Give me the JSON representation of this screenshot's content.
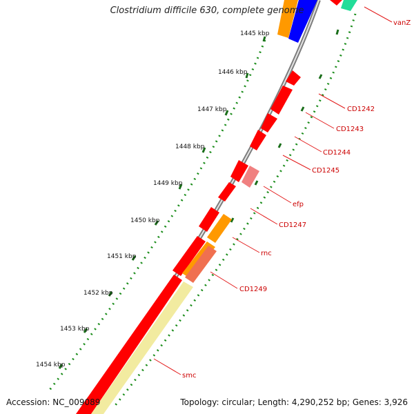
{
  "title": "Clostridium difficile 630, complete genome",
  "footer": {
    "accession": "Accession: NC_009089",
    "summary": "Topology: circular; Length: 4,290,252 bp; Genes: 3,926"
  },
  "ticks": [
    "1445 kbp",
    "1446 kbp",
    "1447 kbp",
    "1448 kbp",
    "1449 kbp",
    "1450 kbp",
    "1451 kbp",
    "1452 kbp",
    "1453 kbp",
    "1454 kbp"
  ],
  "genes": [
    "vanZ",
    "CD1242",
    "CD1243",
    "CD1244",
    "CD1245",
    "efp",
    "CD1247",
    "rnc",
    "CD1249",
    "smc"
  ],
  "colors": {
    "backbone": "#8c8c8c",
    "red_gene": "#ff0000",
    "pink_gene": "#f08080",
    "orange_gene": "#ff9900",
    "blue_gene": "#0000ff",
    "teal_gene": "#22dd99",
    "yellow_gene": "#f2eba0",
    "gc_dots": "#1a8c1a",
    "label_text": "#cc0000"
  }
}
